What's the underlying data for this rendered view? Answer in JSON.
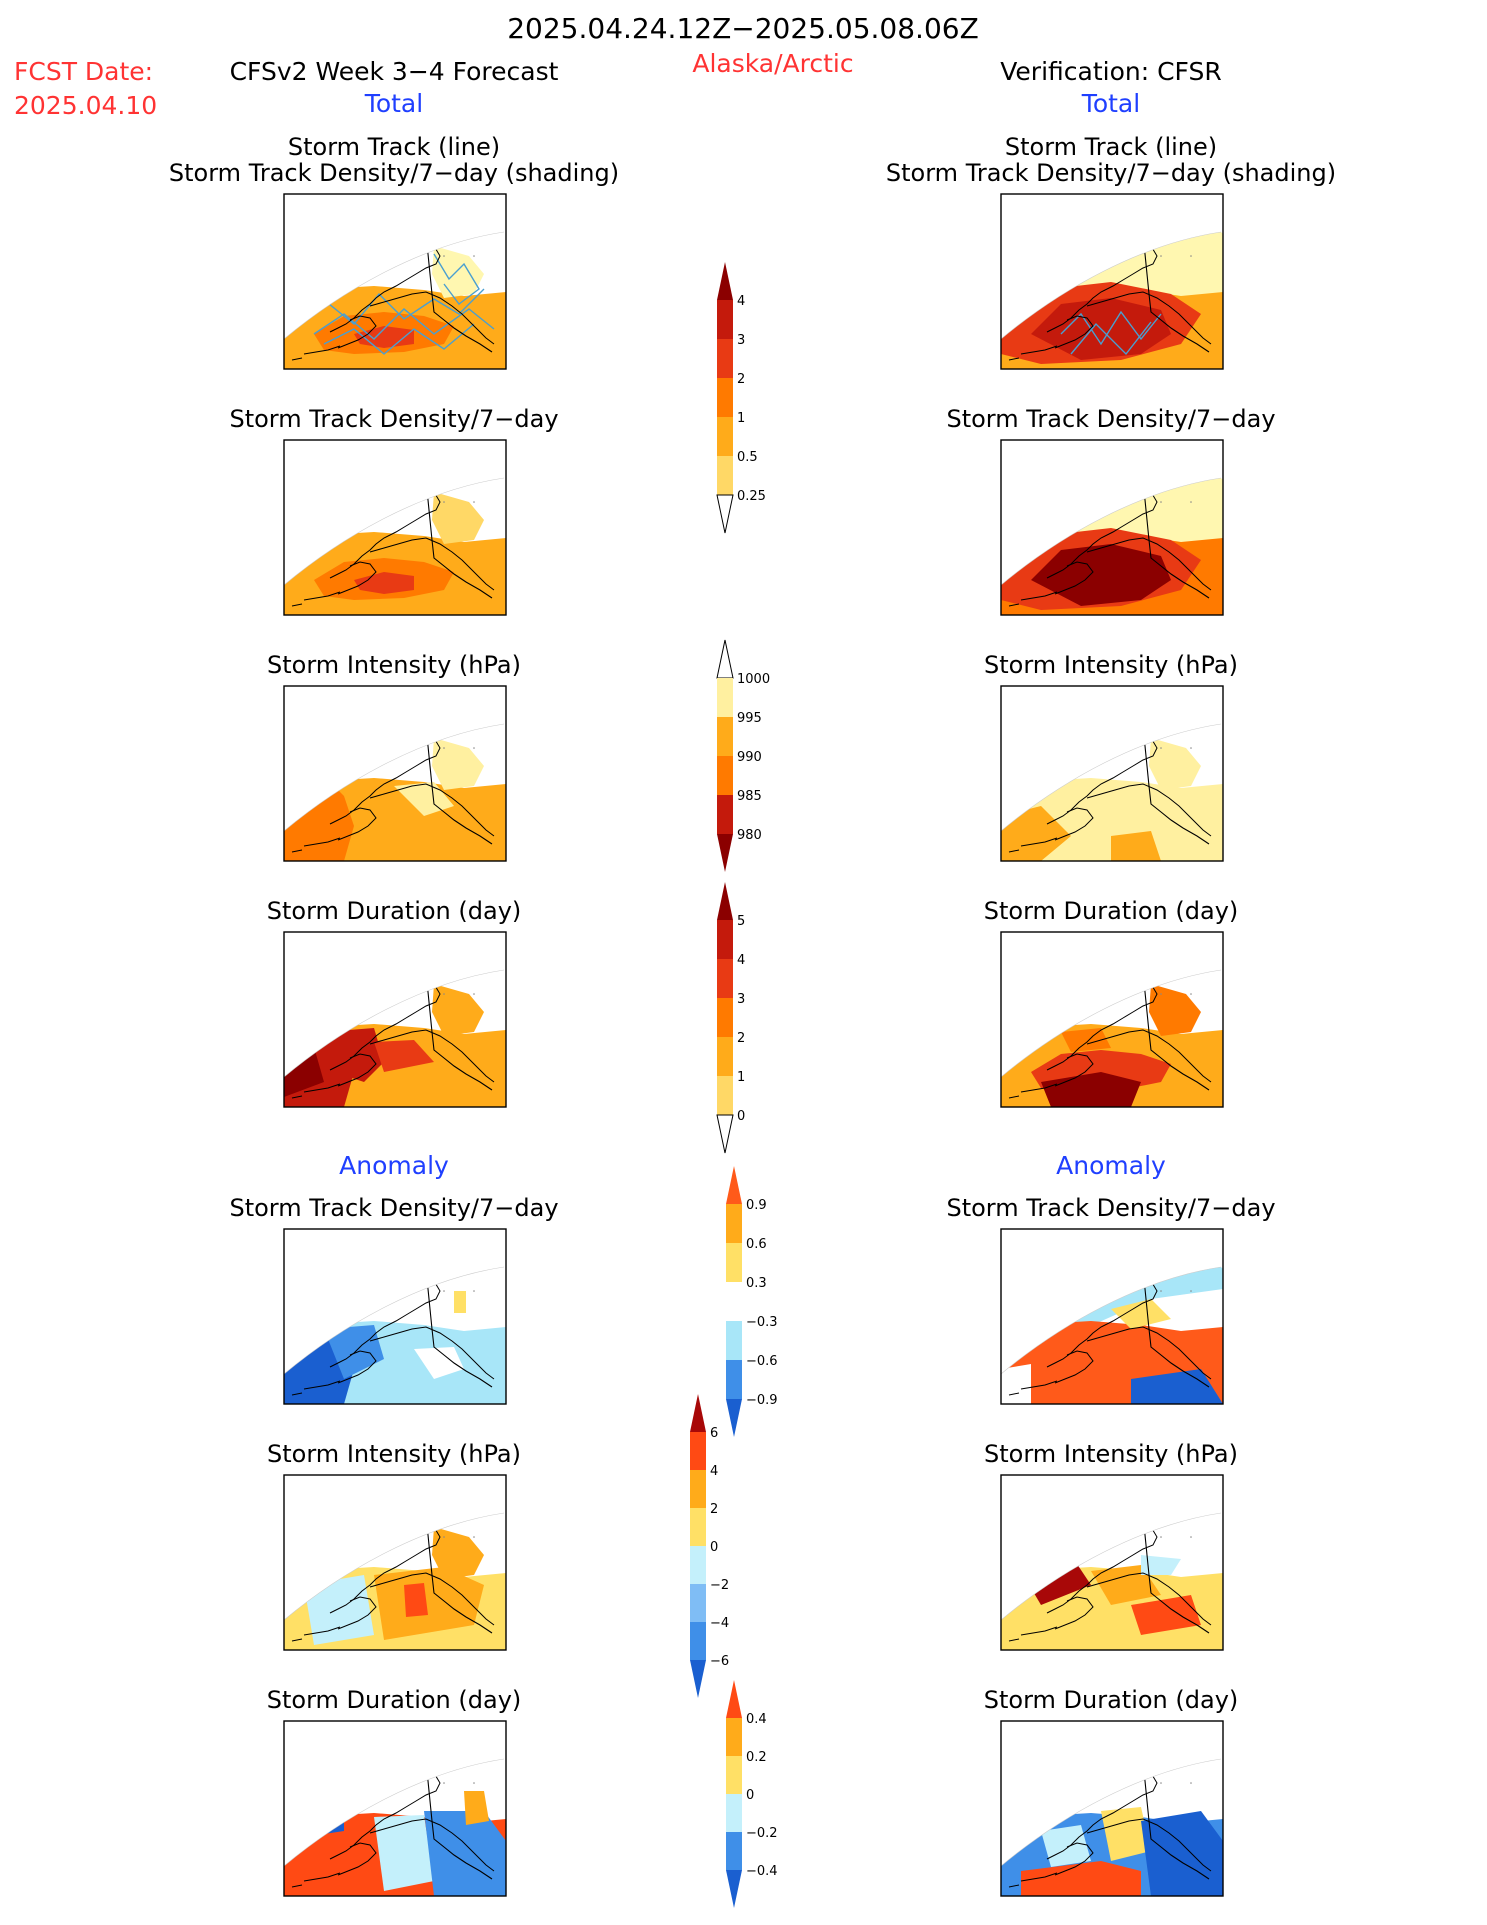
{
  "header": {
    "period": "2025.04.24.12Z−2025.05.08.06Z",
    "fcst_date_label": "FCST Date:",
    "fcst_date_value": "2025.04.10",
    "model_title": "CFSv2 Week 3−4 Forecast",
    "region": "Alaska/Arctic",
    "verification_title": "Verification: CFSR"
  },
  "columns": {
    "left_total_label": "Total",
    "right_total_label": "Total",
    "left_anomaly_label": "Anomaly",
    "right_anomaly_label": "Anomaly"
  },
  "panel_titles": {
    "track_line": "Storm Track (line)",
    "track_shading": "Storm Track Density/7−day (shading)",
    "density": "Storm Track Density/7−day",
    "intensity": "Storm Intensity (hPa)",
    "duration": "Storm Duration (day)"
  },
  "colors": {
    "header_red": "#ff3333",
    "header_blue": "#1f3fff",
    "map_line": "#000000",
    "track_line": "#4a9fd0"
  },
  "chart_data": [
    {
      "type": "heatmap",
      "id": "density_colorbar",
      "title": "Storm Track Density/7−day",
      "levels": [
        0.25,
        0.5,
        1,
        2,
        3,
        4
      ],
      "colors": [
        "#fff7b0",
        "#ffd866",
        "#ffab1a",
        "#ff7a00",
        "#e83a14",
        "#c41a0c",
        "#8b0000"
      ]
    },
    {
      "type": "heatmap",
      "id": "intensity_colorbar",
      "title": "Storm Intensity (hPa)",
      "levels": [
        980,
        985,
        990,
        995,
        1000
      ],
      "colors": [
        "#8b0000",
        "#c41a0c",
        "#ff7a00",
        "#ffab1a",
        "#fff0a0",
        "#ffffff"
      ]
    },
    {
      "type": "heatmap",
      "id": "duration_colorbar",
      "title": "Storm Duration (day)",
      "levels": [
        0,
        1,
        2,
        3,
        4,
        5
      ],
      "colors": [
        "#fff7b0",
        "#ffd866",
        "#ffab1a",
        "#ff7a00",
        "#e83a14",
        "#c41a0c",
        "#8b0000"
      ]
    },
    {
      "type": "heatmap",
      "id": "density_anomaly_colorbar",
      "title": "Anomaly Storm Track Density/7−day",
      "levels": [
        -0.9,
        -0.6,
        -0.3,
        0.3,
        0.6,
        0.9
      ],
      "colors": [
        "#1a5fd0",
        "#3f8fe8",
        "#a8e6f8",
        "#ffffff",
        "#ffe066",
        "#ffab1a",
        "#ff5a1a"
      ]
    },
    {
      "type": "heatmap",
      "id": "intensity_anomaly_colorbar",
      "title": "Anomaly Storm Intensity (hPa)",
      "levels": [
        -6,
        -4,
        -2,
        0,
        2,
        4,
        6
      ],
      "colors": [
        "#1a5fd0",
        "#3f8fe8",
        "#7fbdf5",
        "#c4f0fb",
        "#ffe066",
        "#ffab1a",
        "#ff4a14",
        "#a80808"
      ]
    },
    {
      "type": "heatmap",
      "id": "duration_anomaly_colorbar",
      "title": "Anomaly Storm Duration (day)",
      "levels": [
        -0.4,
        -0.2,
        0,
        0.2,
        0.4
      ],
      "colors": [
        "#1a5fd0",
        "#3f8fe8",
        "#c4f0fb",
        "#ffe066",
        "#ffab1a",
        "#ff4a14"
      ]
    }
  ]
}
